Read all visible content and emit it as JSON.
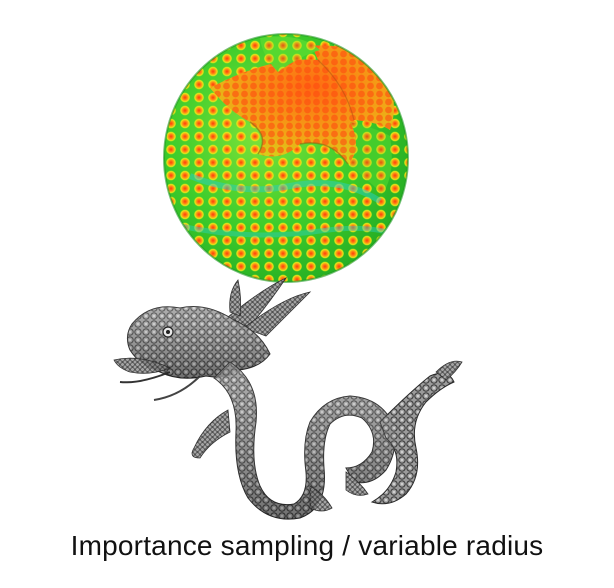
{
  "caption": "Importance sampling / variable radius",
  "figures": {
    "sphere": {
      "icon": "sampled-sphere-with-cutout",
      "colors": {
        "base": "#38d630",
        "mid": "#d8ea18",
        "hot": "#ff5a10",
        "cool": "#24c8c0"
      }
    },
    "dragon": {
      "icon": "stanford-dragon-remeshed",
      "colors": {
        "base": "#8a8a8a",
        "dark": "#2a2a2a",
        "light": "#d8d8d8"
      }
    }
  }
}
